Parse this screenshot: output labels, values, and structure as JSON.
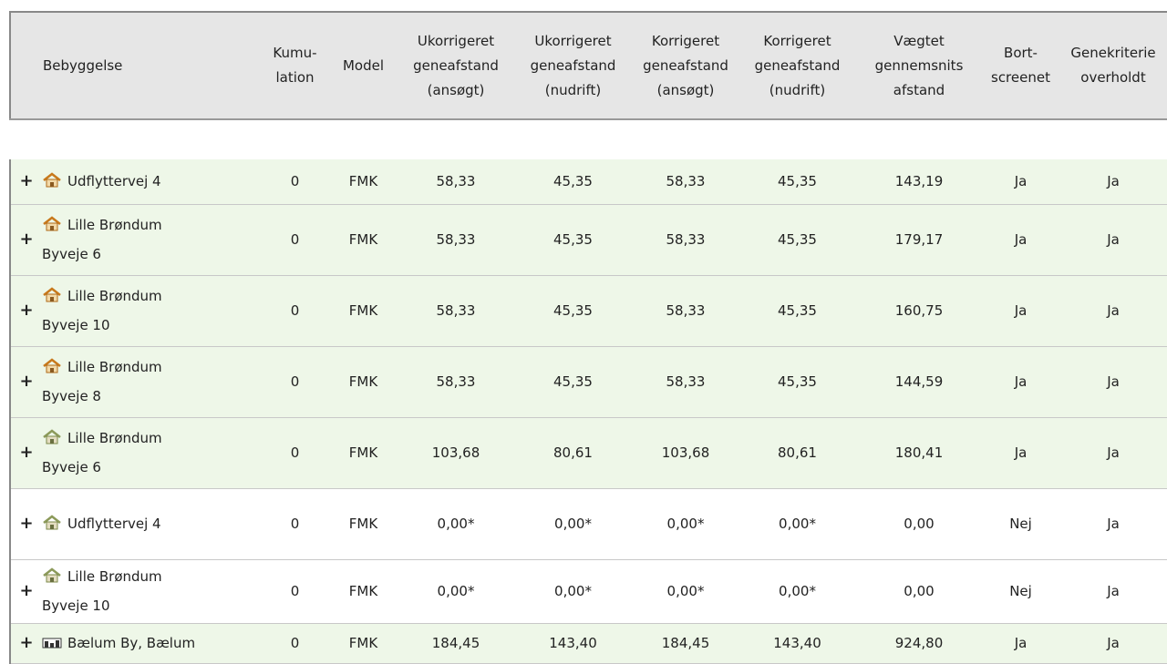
{
  "table": {
    "header": [
      [
        "Bebyggelse"
      ],
      [
        "Kumu-",
        "lation"
      ],
      [
        "Model"
      ],
      [
        "Ukorrigeret",
        "geneafstand",
        "(ansøgt)"
      ],
      [
        "Ukorrigeret",
        "geneafstand",
        "(nudrift)"
      ],
      [
        "Korrigeret",
        "geneafstand",
        "(ansøgt)"
      ],
      [
        "Korrigeret",
        "geneafstand",
        "(nudrift)"
      ],
      [
        "Vægtet",
        "gennemsnits",
        "afstand"
      ],
      [
        "Bort-",
        "screenet"
      ],
      [
        "Genekriterie",
        "overholdt"
      ]
    ],
    "rows": [
      {
        "expander": "+",
        "name": [
          "Udflyttervej 4"
        ],
        "cells": [
          "0",
          "FMK",
          "58,33",
          "45,35",
          "58,33",
          "45,35",
          "143,19",
          "Ja",
          "Ja"
        ]
      },
      {
        "expander": "+",
        "name": [
          "Lille Brøndum",
          "Byveje 6"
        ],
        "cells": [
          "0",
          "FMK",
          "58,33",
          "45,35",
          "58,33",
          "45,35",
          "179,17",
          "Ja",
          "Ja"
        ]
      },
      {
        "expander": "+",
        "name": [
          "Lille Brøndum",
          "Byveje 10"
        ],
        "cells": [
          "0",
          "FMK",
          "58,33",
          "45,35",
          "58,33",
          "45,35",
          "160,75",
          "Ja",
          "Ja"
        ]
      },
      {
        "expander": "+",
        "name": [
          "Lille Brøndum",
          "Byveje 8"
        ],
        "cells": [
          "0",
          "FMK",
          "58,33",
          "45,35",
          "58,33",
          "45,35",
          "144,59",
          "Ja",
          "Ja"
        ]
      },
      {
        "expander": "+",
        "name": [
          "Lille Brøndum",
          "Byveje 6"
        ],
        "cells": [
          "0",
          "FMK",
          "103,68",
          "80,61",
          "103,68",
          "80,61",
          "180,41",
          "Ja",
          "Ja"
        ]
      },
      {
        "expander": "+",
        "name": [
          "Udflyttervej 4"
        ],
        "cells": [
          "0",
          "FMK",
          "0,00*",
          "0,00*",
          "0,00*",
          "0,00*",
          "0,00",
          "Nej",
          "Ja"
        ]
      },
      {
        "expander": "+",
        "name": [
          "Lille Brøndum",
          "Byveje 10"
        ],
        "cells": [
          "0",
          "FMK",
          "0,00*",
          "0,00*",
          "0,00*",
          "0,00*",
          "0,00",
          "Nej",
          "Ja"
        ]
      },
      {
        "expander": "+",
        "name": [
          "Bælum By, Bælum"
        ],
        "cells": [
          "0",
          "FMK",
          "184,45",
          "143,40",
          "184,45",
          "143,40",
          "924,80",
          "Ja",
          "Ja"
        ]
      }
    ]
  }
}
